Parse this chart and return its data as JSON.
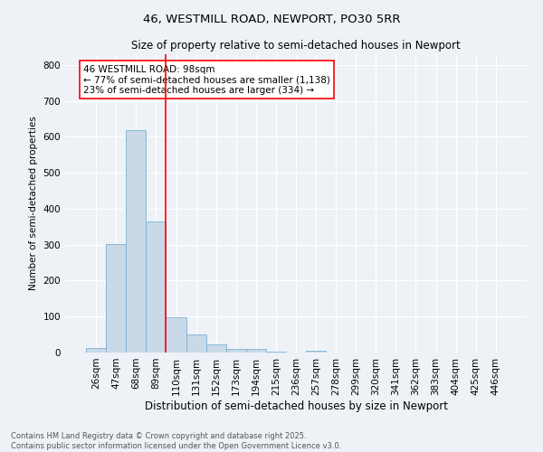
{
  "title_line1": "46, WESTMILL ROAD, NEWPORT, PO30 5RR",
  "title_line2": "Size of property relative to semi-detached houses in Newport",
  "xlabel": "Distribution of semi-detached houses by size in Newport",
  "ylabel": "Number of semi-detached properties",
  "bar_labels": [
    "26sqm",
    "47sqm",
    "68sqm",
    "89sqm",
    "110sqm",
    "131sqm",
    "152sqm",
    "173sqm",
    "194sqm",
    "215sqm",
    "236sqm",
    "257sqm",
    "278sqm",
    "299sqm",
    "320sqm",
    "341sqm",
    "362sqm",
    "383sqm",
    "404sqm",
    "425sqm",
    "446sqm"
  ],
  "bar_values": [
    13,
    303,
    619,
    365,
    98,
    50,
    23,
    10,
    9,
    2,
    0,
    6,
    0,
    0,
    0,
    0,
    0,
    0,
    0,
    0,
    0
  ],
  "bar_color": "#c9d9e8",
  "bar_edge_color": "#7bafd4",
  "red_line_x": 3.5,
  "annotation_title": "46 WESTMILL ROAD: 98sqm",
  "annotation_line1": "← 77% of semi-detached houses are smaller (1,138)",
  "annotation_line2": "23% of semi-detached houses are larger (334) →",
  "ylim": [
    0,
    830
  ],
  "yticks": [
    0,
    100,
    200,
    300,
    400,
    500,
    600,
    700,
    800
  ],
  "footnote_line1": "Contains HM Land Registry data © Crown copyright and database right 2025.",
  "footnote_line2": "Contains public sector information licensed under the Open Government Licence v3.0.",
  "bg_color": "#eef2f7",
  "plot_bg_color": "#eef2f7",
  "grid_color": "#ffffff",
  "title1_fontsize": 9.5,
  "title2_fontsize": 8.5,
  "xlabel_fontsize": 8.5,
  "ylabel_fontsize": 7.5,
  "tick_fontsize": 7.5,
  "annot_fontsize": 7.5,
  "footnote_fontsize": 6.0
}
